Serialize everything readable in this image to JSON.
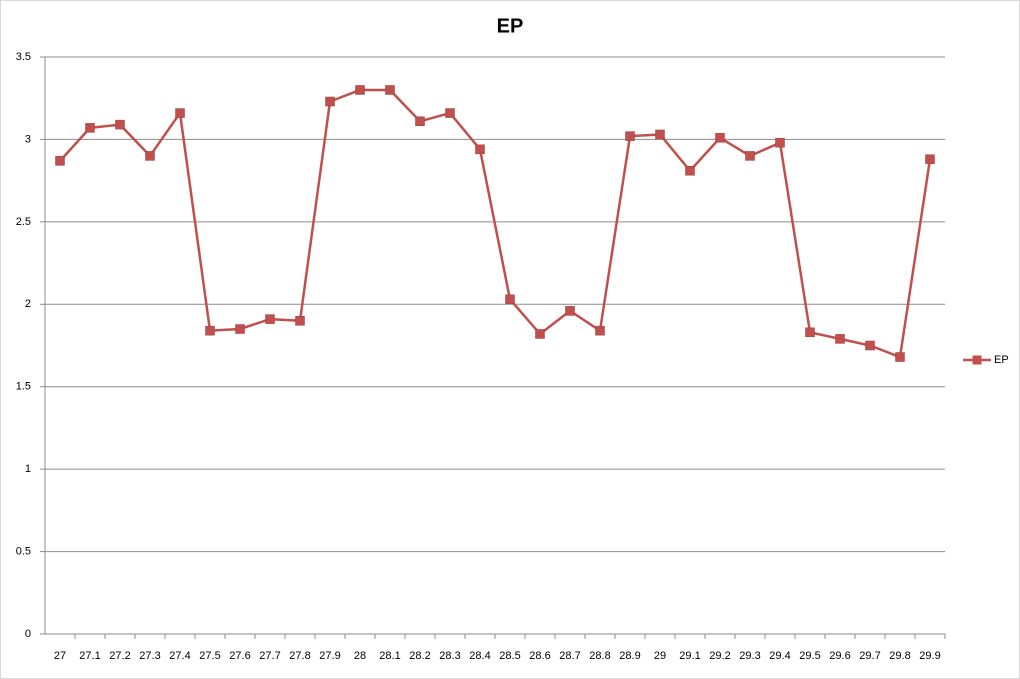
{
  "chart_data": {
    "type": "line",
    "title": "EP",
    "categories": [
      "27",
      "27.1",
      "27.2",
      "27.3",
      "27.4",
      "27.5",
      "27.6",
      "27.7",
      "27.8",
      "27.9",
      "28",
      "28.1",
      "28.2",
      "28.3",
      "28.4",
      "28.5",
      "28.6",
      "28.7",
      "28.8",
      "28.9",
      "29",
      "29.1",
      "29.2",
      "29.3",
      "29.4",
      "29.5",
      "29.6",
      "29.7",
      "29.8",
      "29.9"
    ],
    "series": [
      {
        "name": "EP",
        "color": "#c0504d",
        "values": [
          2.87,
          3.07,
          3.09,
          2.9,
          3.16,
          1.84,
          1.85,
          1.91,
          1.9,
          3.23,
          3.3,
          3.3,
          3.11,
          3.16,
          2.94,
          2.03,
          1.82,
          1.96,
          1.84,
          3.02,
          3.03,
          2.81,
          3.01,
          2.9,
          2.98,
          1.83,
          1.79,
          1.75,
          1.68,
          2.88
        ]
      }
    ],
    "ylim": [
      0,
      3.5
    ],
    "yticks": [
      0,
      0.5,
      1,
      1.5,
      2,
      2.5,
      3,
      3.5
    ],
    "grid": true,
    "legend": "right"
  }
}
